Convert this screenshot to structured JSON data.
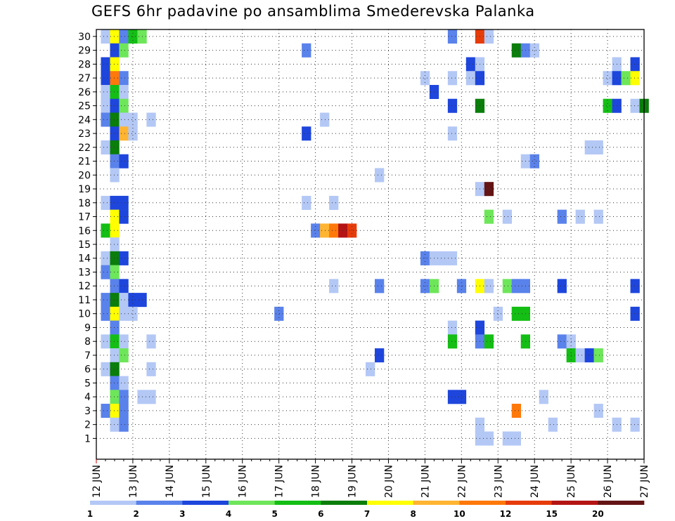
{
  "chart_data": {
    "type": "heatmap",
    "title": "GEFS 6hr padavine po ansamblima Smederevska Palanka",
    "y_tick_labels": [
      "1",
      "2",
      "3",
      "4",
      "5",
      "6",
      "7",
      "8",
      "9",
      "10",
      "11",
      "12",
      "13",
      "14",
      "15",
      "16",
      "17",
      "18",
      "19",
      "20",
      "21",
      "22",
      "23",
      "24",
      "25",
      "26",
      "27",
      "28",
      "29",
      "30"
    ],
    "x_tick_labels": [
      "12 JUN",
      "13 JUN",
      "14 JUN",
      "15 JUN",
      "16 JUN",
      "17 JUN",
      "18 JUN",
      "19 JUN",
      "20 JUN",
      "21 JUN",
      "22 JUN",
      "23 JUN",
      "24 JUN",
      "25 JUN",
      "26 JUN",
      "27 JUN"
    ],
    "x_start": "12 JUN 00Z",
    "time_step_hours": 6,
    "ylim": [
      0.5,
      30.5
    ],
    "grid": true,
    "legend_position": "bottom",
    "color_scale": {
      "thresholds": [
        "1",
        "2",
        "3",
        "4",
        "5",
        "6",
        "7",
        "8",
        "10",
        "12",
        "15",
        "20"
      ],
      "colors": [
        "#b4c8f5",
        "#5a82eb",
        "#1e46dc",
        "#6ee65a",
        "#14be14",
        "#0a7d0a",
        "#ffff00",
        "#ffb432",
        "#ff780a",
        "#e63c0a",
        "#b41414",
        "#641414"
      ]
    },
    "cells": [
      {
        "member": 30,
        "step": 1,
        "level": 0
      },
      {
        "member": 30,
        "step": 2,
        "level": 6
      },
      {
        "member": 30,
        "step": 3,
        "level": 1
      },
      {
        "member": 30,
        "step": 4,
        "level": 4
      },
      {
        "member": 30,
        "step": 5,
        "level": 3
      },
      {
        "member": 30,
        "step": 39,
        "level": 1
      },
      {
        "member": 30,
        "step": 42,
        "level": 9
      },
      {
        "member": 30,
        "step": 43,
        "level": 0
      },
      {
        "member": 29,
        "step": 2,
        "level": 2
      },
      {
        "member": 29,
        "step": 3,
        "level": 3
      },
      {
        "member": 29,
        "step": 23,
        "level": 1
      },
      {
        "member": 29,
        "step": 46,
        "level": 5
      },
      {
        "member": 29,
        "step": 47,
        "level": 1
      },
      {
        "member": 29,
        "step": 48,
        "level": 0
      },
      {
        "member": 28,
        "step": 1,
        "level": 2
      },
      {
        "member": 28,
        "step": 2,
        "level": 6
      },
      {
        "member": 28,
        "step": 41,
        "level": 2
      },
      {
        "member": 28,
        "step": 42,
        "level": 0
      },
      {
        "member": 28,
        "step": 57,
        "level": 0
      },
      {
        "member": 28,
        "step": 59,
        "level": 2
      },
      {
        "member": 27,
        "step": 1,
        "level": 2
      },
      {
        "member": 27,
        "step": 2,
        "level": 8
      },
      {
        "member": 27,
        "step": 3,
        "level": 1
      },
      {
        "member": 27,
        "step": 36,
        "level": 0
      },
      {
        "member": 27,
        "step": 39,
        "level": 0
      },
      {
        "member": 27,
        "step": 41,
        "level": 0
      },
      {
        "member": 27,
        "step": 42,
        "level": 2
      },
      {
        "member": 27,
        "step": 56,
        "level": 0
      },
      {
        "member": 27,
        "step": 57,
        "level": 2
      },
      {
        "member": 27,
        "step": 58,
        "level": 3
      },
      {
        "member": 27,
        "step": 59,
        "level": 6
      },
      {
        "member": 26,
        "step": 1,
        "level": 0
      },
      {
        "member": 26,
        "step": 2,
        "level": 4
      },
      {
        "member": 26,
        "step": 3,
        "level": 0
      },
      {
        "member": 26,
        "step": 37,
        "level": 2
      },
      {
        "member": 25,
        "step": 1,
        "level": 0
      },
      {
        "member": 25,
        "step": 2,
        "level": 2
      },
      {
        "member": 25,
        "step": 3,
        "level": 3
      },
      {
        "member": 25,
        "step": 39,
        "level": 2
      },
      {
        "member": 25,
        "step": 42,
        "level": 5
      },
      {
        "member": 25,
        "step": 56,
        "level": 4
      },
      {
        "member": 25,
        "step": 57,
        "level": 2
      },
      {
        "member": 25,
        "step": 59,
        "level": 0
      },
      {
        "member": 25,
        "step": 60,
        "level": 5
      },
      {
        "member": 24,
        "step": 1,
        "level": 1
      },
      {
        "member": 24,
        "step": 2,
        "level": 5
      },
      {
        "member": 24,
        "step": 3,
        "level": 0
      },
      {
        "member": 24,
        "step": 4,
        "level": 0
      },
      {
        "member": 24,
        "step": 6,
        "level": 0
      },
      {
        "member": 24,
        "step": 25,
        "level": 0
      },
      {
        "member": 23,
        "step": 2,
        "level": 2
      },
      {
        "member": 23,
        "step": 3,
        "level": 7
      },
      {
        "member": 23,
        "step": 4,
        "level": 0
      },
      {
        "member": 23,
        "step": 23,
        "level": 2
      },
      {
        "member": 23,
        "step": 39,
        "level": 0
      },
      {
        "member": 22,
        "step": 1,
        "level": 0
      },
      {
        "member": 22,
        "step": 2,
        "level": 5
      },
      {
        "member": 22,
        "step": 54,
        "level": 0
      },
      {
        "member": 22,
        "step": 55,
        "level": 0
      },
      {
        "member": 21,
        "step": 2,
        "level": 1
      },
      {
        "member": 21,
        "step": 3,
        "level": 2
      },
      {
        "member": 21,
        "step": 47,
        "level": 0
      },
      {
        "member": 21,
        "step": 48,
        "level": 1
      },
      {
        "member": 20,
        "step": 2,
        "level": 0
      },
      {
        "member": 20,
        "step": 31,
        "level": 0
      },
      {
        "member": 19,
        "step": 42,
        "level": 0
      },
      {
        "member": 19,
        "step": 43,
        "level": 11
      },
      {
        "member": 18,
        "step": 1,
        "level": 0
      },
      {
        "member": 18,
        "step": 2,
        "level": 2
      },
      {
        "member": 18,
        "step": 3,
        "level": 2
      },
      {
        "member": 18,
        "step": 23,
        "level": 0
      },
      {
        "member": 18,
        "step": 26,
        "level": 0
      },
      {
        "member": 17,
        "step": 2,
        "level": 6
      },
      {
        "member": 17,
        "step": 3,
        "level": 2
      },
      {
        "member": 17,
        "step": 43,
        "level": 3
      },
      {
        "member": 17,
        "step": 45,
        "level": 0
      },
      {
        "member": 17,
        "step": 51,
        "level": 1
      },
      {
        "member": 17,
        "step": 53,
        "level": 0
      },
      {
        "member": 17,
        "step": 55,
        "level": 0
      },
      {
        "member": 16,
        "step": 1,
        "level": 4
      },
      {
        "member": 16,
        "step": 2,
        "level": 6
      },
      {
        "member": 16,
        "step": 24,
        "level": 1
      },
      {
        "member": 16,
        "step": 25,
        "level": 7
      },
      {
        "member": 16,
        "step": 26,
        "level": 8
      },
      {
        "member": 16,
        "step": 27,
        "level": 10
      },
      {
        "member": 16,
        "step": 28,
        "level": 9
      },
      {
        "member": 15,
        "step": 2,
        "level": 0
      },
      {
        "member": 14,
        "step": 1,
        "level": 0
      },
      {
        "member": 14,
        "step": 2,
        "level": 5
      },
      {
        "member": 14,
        "step": 3,
        "level": 2
      },
      {
        "member": 14,
        "step": 36,
        "level": 1
      },
      {
        "member": 14,
        "step": 37,
        "level": 0
      },
      {
        "member": 14,
        "step": 38,
        "level": 0
      },
      {
        "member": 14,
        "step": 39,
        "level": 0
      },
      {
        "member": 13,
        "step": 1,
        "level": 1
      },
      {
        "member": 13,
        "step": 2,
        "level": 3
      },
      {
        "member": 12,
        "step": 2,
        "level": 1
      },
      {
        "member": 12,
        "step": 3,
        "level": 2
      },
      {
        "member": 12,
        "step": 26,
        "level": 0
      },
      {
        "member": 12,
        "step": 31,
        "level": 1
      },
      {
        "member": 12,
        "step": 36,
        "level": 1
      },
      {
        "member": 12,
        "step": 37,
        "level": 3
      },
      {
        "member": 12,
        "step": 40,
        "level": 1
      },
      {
        "member": 12,
        "step": 42,
        "level": 6
      },
      {
        "member": 12,
        "step": 43,
        "level": 0
      },
      {
        "member": 12,
        "step": 45,
        "level": 3
      },
      {
        "member": 12,
        "step": 46,
        "level": 1
      },
      {
        "member": 12,
        "step": 47,
        "level": 1
      },
      {
        "member": 12,
        "step": 51,
        "level": 2
      },
      {
        "member": 12,
        "step": 59,
        "level": 2
      },
      {
        "member": 11,
        "step": 1,
        "level": 1
      },
      {
        "member": 11,
        "step": 2,
        "level": 5
      },
      {
        "member": 11,
        "step": 3,
        "level": 0
      },
      {
        "member": 11,
        "step": 4,
        "level": 2
      },
      {
        "member": 11,
        "step": 5,
        "level": 2
      },
      {
        "member": 10,
        "step": 1,
        "level": 1
      },
      {
        "member": 10,
        "step": 2,
        "level": 6
      },
      {
        "member": 10,
        "step": 3,
        "level": 0
      },
      {
        "member": 10,
        "step": 4,
        "level": 0
      },
      {
        "member": 10,
        "step": 20,
        "level": 1
      },
      {
        "member": 10,
        "step": 44,
        "level": 0
      },
      {
        "member": 10,
        "step": 46,
        "level": 4
      },
      {
        "member": 10,
        "step": 47,
        "level": 4
      },
      {
        "member": 10,
        "step": 59,
        "level": 2
      },
      {
        "member": 9,
        "step": 2,
        "level": 1
      },
      {
        "member": 9,
        "step": 39,
        "level": 0
      },
      {
        "member": 9,
        "step": 42,
        "level": 2
      },
      {
        "member": 8,
        "step": 1,
        "level": 0
      },
      {
        "member": 8,
        "step": 2,
        "level": 4
      },
      {
        "member": 8,
        "step": 3,
        "level": 0
      },
      {
        "member": 8,
        "step": 6,
        "level": 0
      },
      {
        "member": 8,
        "step": 39,
        "level": 4
      },
      {
        "member": 8,
        "step": 42,
        "level": 1
      },
      {
        "member": 8,
        "step": 43,
        "level": 4
      },
      {
        "member": 8,
        "step": 47,
        "level": 4
      },
      {
        "member": 8,
        "step": 51,
        "level": 1
      },
      {
        "member": 8,
        "step": 52,
        "level": 0
      },
      {
        "member": 7,
        "step": 2,
        "level": 0
      },
      {
        "member": 7,
        "step": 3,
        "level": 3
      },
      {
        "member": 7,
        "step": 31,
        "level": 2
      },
      {
        "member": 7,
        "step": 52,
        "level": 4
      },
      {
        "member": 7,
        "step": 53,
        "level": 0
      },
      {
        "member": 7,
        "step": 54,
        "level": 2
      },
      {
        "member": 7,
        "step": 55,
        "level": 3
      },
      {
        "member": 6,
        "step": 1,
        "level": 0
      },
      {
        "member": 6,
        "step": 2,
        "level": 5
      },
      {
        "member": 6,
        "step": 6,
        "level": 0
      },
      {
        "member": 6,
        "step": 30,
        "level": 0
      },
      {
        "member": 5,
        "step": 2,
        "level": 1
      },
      {
        "member": 5,
        "step": 3,
        "level": 0
      },
      {
        "member": 4,
        "step": 2,
        "level": 3
      },
      {
        "member": 4,
        "step": 3,
        "level": 1
      },
      {
        "member": 4,
        "step": 5,
        "level": 0
      },
      {
        "member": 4,
        "step": 6,
        "level": 0
      },
      {
        "member": 4,
        "step": 39,
        "level": 2
      },
      {
        "member": 4,
        "step": 40,
        "level": 2
      },
      {
        "member": 4,
        "step": 49,
        "level": 0
      },
      {
        "member": 3,
        "step": 1,
        "level": 1
      },
      {
        "member": 3,
        "step": 2,
        "level": 6
      },
      {
        "member": 3,
        "step": 3,
        "level": 1
      },
      {
        "member": 3,
        "step": 46,
        "level": 8
      },
      {
        "member": 3,
        "step": 55,
        "level": 0
      },
      {
        "member": 2,
        "step": 2,
        "level": 0
      },
      {
        "member": 2,
        "step": 3,
        "level": 1
      },
      {
        "member": 2,
        "step": 42,
        "level": 0
      },
      {
        "member": 2,
        "step": 50,
        "level": 0
      },
      {
        "member": 2,
        "step": 57,
        "level": 0
      },
      {
        "member": 2,
        "step": 59,
        "level": 0
      },
      {
        "member": 1,
        "step": 42,
        "level": 0
      },
      {
        "member": 1,
        "step": 43,
        "level": 0
      },
      {
        "member": 1,
        "step": 45,
        "level": 0
      },
      {
        "member": 1,
        "step": 46,
        "level": 0
      }
    ]
  }
}
